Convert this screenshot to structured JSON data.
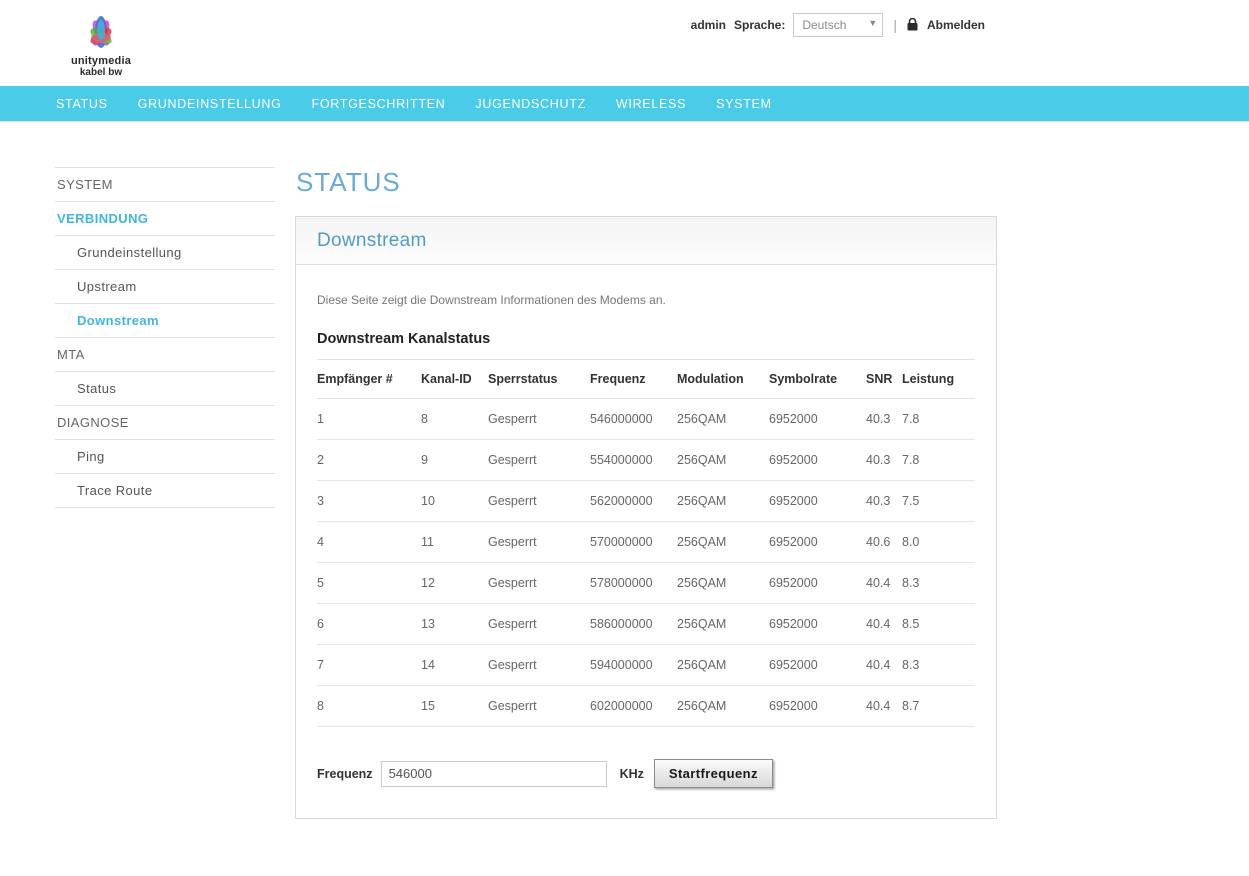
{
  "colors": {
    "nav_background": "#4acbe8",
    "page_title_blue": "#6aaad8",
    "panel_title_blue": "#4f9bce",
    "sidebar_active": "#41b6e0"
  },
  "header": {
    "logo_line1": "unitymedia",
    "logo_line2": "kabel bw",
    "user": "admin",
    "language_label": "Sprache:",
    "language_value": "Deutsch",
    "divider": "|",
    "logout_label": "Abmelden"
  },
  "nav": {
    "items": [
      {
        "label": "STATUS"
      },
      {
        "label": "GRUNDEINSTELLUNG"
      },
      {
        "label": "FORTGESCHRITTEN"
      },
      {
        "label": "JUGENDSCHUTZ"
      },
      {
        "label": "WIRELESS"
      },
      {
        "label": "SYSTEM"
      }
    ]
  },
  "sidebar": {
    "items": [
      {
        "label": "SYSTEM",
        "level": "top",
        "active": false
      },
      {
        "label": "VERBINDUNG",
        "level": "top",
        "active": true
      },
      {
        "label": "Grundeinstellung",
        "level": "sub",
        "active": false
      },
      {
        "label": "Upstream",
        "level": "sub",
        "active": false
      },
      {
        "label": "Downstream",
        "level": "sub",
        "active": true
      },
      {
        "label": "MTA",
        "level": "top",
        "active": false
      },
      {
        "label": "Status",
        "level": "sub",
        "active": false
      },
      {
        "label": "DIAGNOSE",
        "level": "top",
        "active": false
      },
      {
        "label": "Ping",
        "level": "sub",
        "active": false
      },
      {
        "label": "Trace Route",
        "level": "sub",
        "active": false
      }
    ]
  },
  "main": {
    "page_title": "STATUS",
    "panel_title": "Downstream",
    "description": "Diese Seite zeigt die Downstream Informationen des Modems an.",
    "section_title": "Downstream Kanalstatus",
    "table": {
      "columns": [
        "Empfänger #",
        "Kanal-ID",
        "Sperrstatus",
        "Frequenz",
        "Modulation",
        "Symbolrate",
        "SNR",
        "Leistung"
      ],
      "rows": [
        [
          "1",
          "8",
          "Gesperrt",
          "546000000",
          "256QAM",
          "6952000",
          "40.3",
          "7.8"
        ],
        [
          "2",
          "9",
          "Gesperrt",
          "554000000",
          "256QAM",
          "6952000",
          "40.3",
          "7.8"
        ],
        [
          "3",
          "10",
          "Gesperrt",
          "562000000",
          "256QAM",
          "6952000",
          "40.3",
          "7.5"
        ],
        [
          "4",
          "11",
          "Gesperrt",
          "570000000",
          "256QAM",
          "6952000",
          "40.6",
          "8.0"
        ],
        [
          "5",
          "12",
          "Gesperrt",
          "578000000",
          "256QAM",
          "6952000",
          "40.4",
          "8.3"
        ],
        [
          "6",
          "13",
          "Gesperrt",
          "586000000",
          "256QAM",
          "6952000",
          "40.4",
          "8.5"
        ],
        [
          "7",
          "14",
          "Gesperrt",
          "594000000",
          "256QAM",
          "6952000",
          "40.4",
          "8.3"
        ],
        [
          "8",
          "15",
          "Gesperrt",
          "602000000",
          "256QAM",
          "6952000",
          "40.4",
          "8.7"
        ]
      ]
    },
    "form": {
      "frequency_label": "Frequenz",
      "frequency_value": "546000",
      "unit_label": "KHz",
      "button_label": "Startfrequenz"
    }
  }
}
